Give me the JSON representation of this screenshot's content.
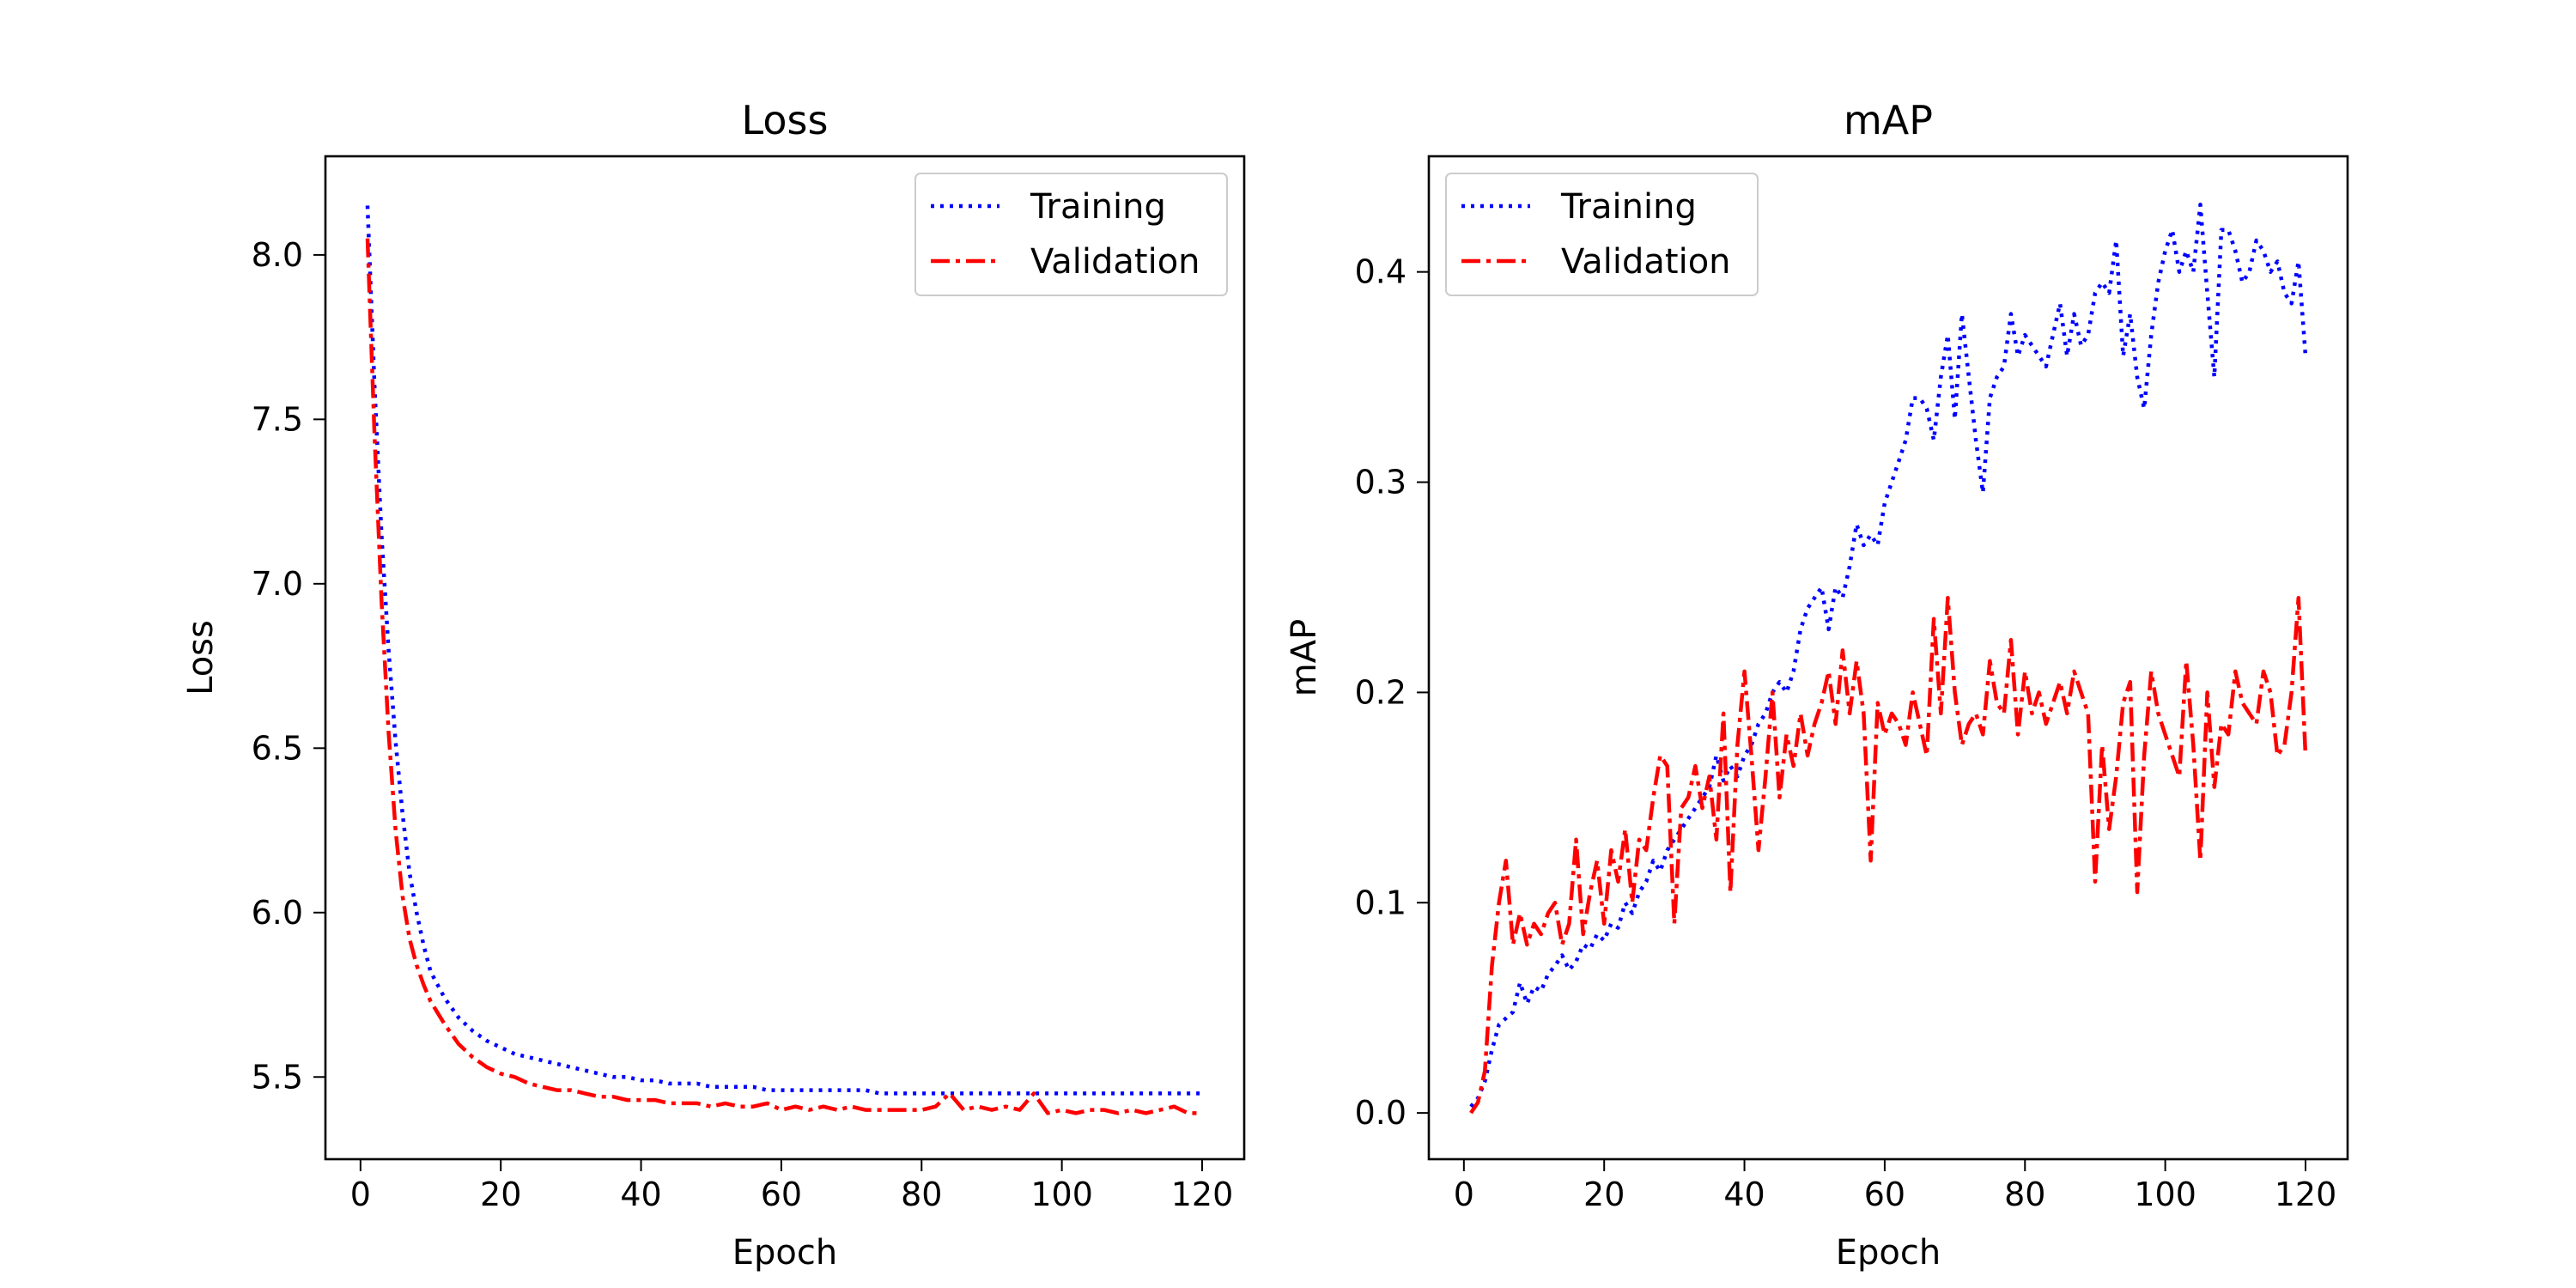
{
  "chart_data": [
    {
      "type": "line",
      "title": "Loss",
      "xlabel": "Epoch",
      "ylabel": "Loss",
      "xlim": [
        -5,
        126
      ],
      "ylim": [
        5.25,
        8.3
      ],
      "xticks": [
        0,
        20,
        40,
        60,
        80,
        100,
        120
      ],
      "yticks": [
        5.5,
        6.0,
        6.5,
        7.0,
        7.5,
        8.0
      ],
      "ytick_labels": [
        "5.5",
        "6.0",
        "6.5",
        "7.0",
        "7.5",
        "8.0"
      ],
      "grid": false,
      "legend_position": "top-right",
      "x": [
        1,
        2,
        3,
        4,
        5,
        6,
        7,
        8,
        9,
        10,
        12,
        14,
        16,
        18,
        20,
        22,
        24,
        26,
        28,
        30,
        32,
        34,
        36,
        38,
        40,
        42,
        44,
        46,
        48,
        50,
        52,
        54,
        56,
        58,
        60,
        62,
        64,
        66,
        68,
        70,
        72,
        74,
        76,
        78,
        80,
        82,
        84,
        86,
        88,
        90,
        92,
        94,
        96,
        98,
        100,
        102,
        104,
        106,
        108,
        110,
        112,
        114,
        116,
        118,
        120
      ],
      "series": [
        {
          "name": "Training",
          "color": "#0000ff",
          "dash": "dotted",
          "values": [
            8.15,
            7.6,
            7.15,
            6.8,
            6.52,
            6.3,
            6.12,
            6.0,
            5.9,
            5.82,
            5.74,
            5.68,
            5.64,
            5.61,
            5.59,
            5.57,
            5.56,
            5.55,
            5.54,
            5.53,
            5.52,
            5.51,
            5.5,
            5.5,
            5.49,
            5.49,
            5.48,
            5.48,
            5.48,
            5.47,
            5.47,
            5.47,
            5.47,
            5.46,
            5.46,
            5.46,
            5.46,
            5.46,
            5.46,
            5.46,
            5.46,
            5.45,
            5.45,
            5.45,
            5.45,
            5.45,
            5.45,
            5.45,
            5.45,
            5.45,
            5.45,
            5.45,
            5.45,
            5.45,
            5.45,
            5.45,
            5.45,
            5.45,
            5.45,
            5.45,
            5.45,
            5.45,
            5.45,
            5.45,
            5.45
          ]
        },
        {
          "name": "Validation",
          "color": "#ff0000",
          "dash": "dashdot",
          "values": [
            8.05,
            7.45,
            6.95,
            6.55,
            6.25,
            6.05,
            5.92,
            5.84,
            5.78,
            5.73,
            5.66,
            5.6,
            5.56,
            5.53,
            5.51,
            5.5,
            5.48,
            5.47,
            5.46,
            5.46,
            5.45,
            5.44,
            5.44,
            5.43,
            5.43,
            5.43,
            5.42,
            5.42,
            5.42,
            5.41,
            5.42,
            5.41,
            5.41,
            5.42,
            5.4,
            5.41,
            5.4,
            5.41,
            5.4,
            5.41,
            5.4,
            5.4,
            5.4,
            5.4,
            5.4,
            5.41,
            5.45,
            5.4,
            5.41,
            5.4,
            5.41,
            5.4,
            5.45,
            5.39,
            5.4,
            5.39,
            5.4,
            5.4,
            5.39,
            5.4,
            5.39,
            5.4,
            5.41,
            5.39,
            5.39
          ]
        }
      ]
    },
    {
      "type": "line",
      "title": "mAP",
      "xlabel": "Epoch",
      "ylabel": "mAP",
      "xlim": [
        -5,
        126
      ],
      "ylim": [
        -0.022,
        0.455
      ],
      "xticks": [
        0,
        20,
        40,
        60,
        80,
        100,
        120
      ],
      "yticks": [
        0.0,
        0.1,
        0.2,
        0.3,
        0.4
      ],
      "ytick_labels": [
        "0.0",
        "0.1",
        "0.2",
        "0.3",
        "0.4"
      ],
      "grid": false,
      "legend_position": "top-left",
      "x": [
        1,
        2,
        3,
        4,
        5,
        6,
        7,
        8,
        9,
        10,
        11,
        12,
        13,
        14,
        15,
        16,
        17,
        18,
        19,
        20,
        21,
        22,
        23,
        24,
        25,
        26,
        27,
        28,
        29,
        30,
        31,
        32,
        33,
        34,
        35,
        36,
        37,
        38,
        39,
        40,
        41,
        42,
        43,
        44,
        45,
        46,
        47,
        48,
        49,
        50,
        51,
        52,
        53,
        54,
        55,
        56,
        57,
        58,
        59,
        60,
        61,
        62,
        63,
        64,
        65,
        66,
        67,
        68,
        69,
        70,
        71,
        72,
        73,
        74,
        75,
        76,
        77,
        78,
        79,
        80,
        81,
        82,
        83,
        84,
        85,
        86,
        87,
        88,
        89,
        90,
        91,
        92,
        93,
        94,
        95,
        96,
        97,
        98,
        99,
        100,
        101,
        102,
        103,
        104,
        105,
        106,
        107,
        108,
        109,
        110,
        111,
        112,
        113,
        114,
        115,
        116,
        117,
        118,
        119,
        120
      ],
      "series": [
        {
          "name": "Training",
          "color": "#0000ff",
          "dash": "dotted",
          "values": [
            0.003,
            0.007,
            0.015,
            0.03,
            0.042,
            0.045,
            0.048,
            0.062,
            0.052,
            0.06,
            0.058,
            0.066,
            0.07,
            0.075,
            0.068,
            0.072,
            0.08,
            0.078,
            0.085,
            0.082,
            0.09,
            0.088,
            0.1,
            0.095,
            0.105,
            0.11,
            0.12,
            0.115,
            0.125,
            0.13,
            0.135,
            0.14,
            0.145,
            0.15,
            0.155,
            0.17,
            0.158,
            0.165,
            0.16,
            0.17,
            0.175,
            0.185,
            0.19,
            0.2,
            0.205,
            0.2,
            0.21,
            0.23,
            0.24,
            0.245,
            0.25,
            0.23,
            0.25,
            0.245,
            0.26,
            0.28,
            0.27,
            0.275,
            0.27,
            0.29,
            0.3,
            0.31,
            0.32,
            0.34,
            0.34,
            0.335,
            0.32,
            0.35,
            0.37,
            0.33,
            0.38,
            0.35,
            0.32,
            0.295,
            0.34,
            0.35,
            0.355,
            0.38,
            0.36,
            0.37,
            0.365,
            0.36,
            0.355,
            0.37,
            0.385,
            0.36,
            0.38,
            0.365,
            0.37,
            0.39,
            0.395,
            0.39,
            0.415,
            0.36,
            0.38,
            0.35,
            0.335,
            0.37,
            0.395,
            0.41,
            0.42,
            0.4,
            0.41,
            0.4,
            0.432,
            0.39,
            0.35,
            0.42,
            0.42,
            0.41,
            0.395,
            0.4,
            0.415,
            0.41,
            0.4,
            0.405,
            0.39,
            0.385,
            0.405,
            0.36
          ]
        },
        {
          "name": "Validation",
          "color": "#ff0000",
          "dash": "dashdot",
          "values": [
            0.0,
            0.005,
            0.02,
            0.07,
            0.1,
            0.12,
            0.08,
            0.095,
            0.08,
            0.09,
            0.085,
            0.095,
            0.1,
            0.08,
            0.09,
            0.13,
            0.085,
            0.105,
            0.12,
            0.09,
            0.125,
            0.11,
            0.135,
            0.1,
            0.13,
            0.125,
            0.15,
            0.17,
            0.165,
            0.09,
            0.145,
            0.15,
            0.165,
            0.145,
            0.16,
            0.13,
            0.19,
            0.105,
            0.175,
            0.21,
            0.17,
            0.125,
            0.16,
            0.2,
            0.15,
            0.18,
            0.165,
            0.19,
            0.17,
            0.185,
            0.195,
            0.21,
            0.185,
            0.22,
            0.19,
            0.215,
            0.19,
            0.12,
            0.195,
            0.18,
            0.19,
            0.185,
            0.175,
            0.2,
            0.185,
            0.17,
            0.235,
            0.19,
            0.245,
            0.2,
            0.175,
            0.185,
            0.19,
            0.18,
            0.215,
            0.195,
            0.19,
            0.225,
            0.18,
            0.21,
            0.19,
            0.2,
            0.185,
            0.195,
            0.205,
            0.19,
            0.21,
            0.2,
            0.19,
            0.11,
            0.175,
            0.135,
            0.16,
            0.195,
            0.205,
            0.105,
            0.17,
            0.21,
            0.19,
            0.18,
            0.17,
            0.16,
            0.215,
            0.175,
            0.12,
            0.2,
            0.155,
            0.185,
            0.18,
            0.21,
            0.195,
            0.19,
            0.185,
            0.21,
            0.2,
            0.17,
            0.175,
            0.2,
            0.245,
            0.17
          ]
        }
      ]
    }
  ]
}
